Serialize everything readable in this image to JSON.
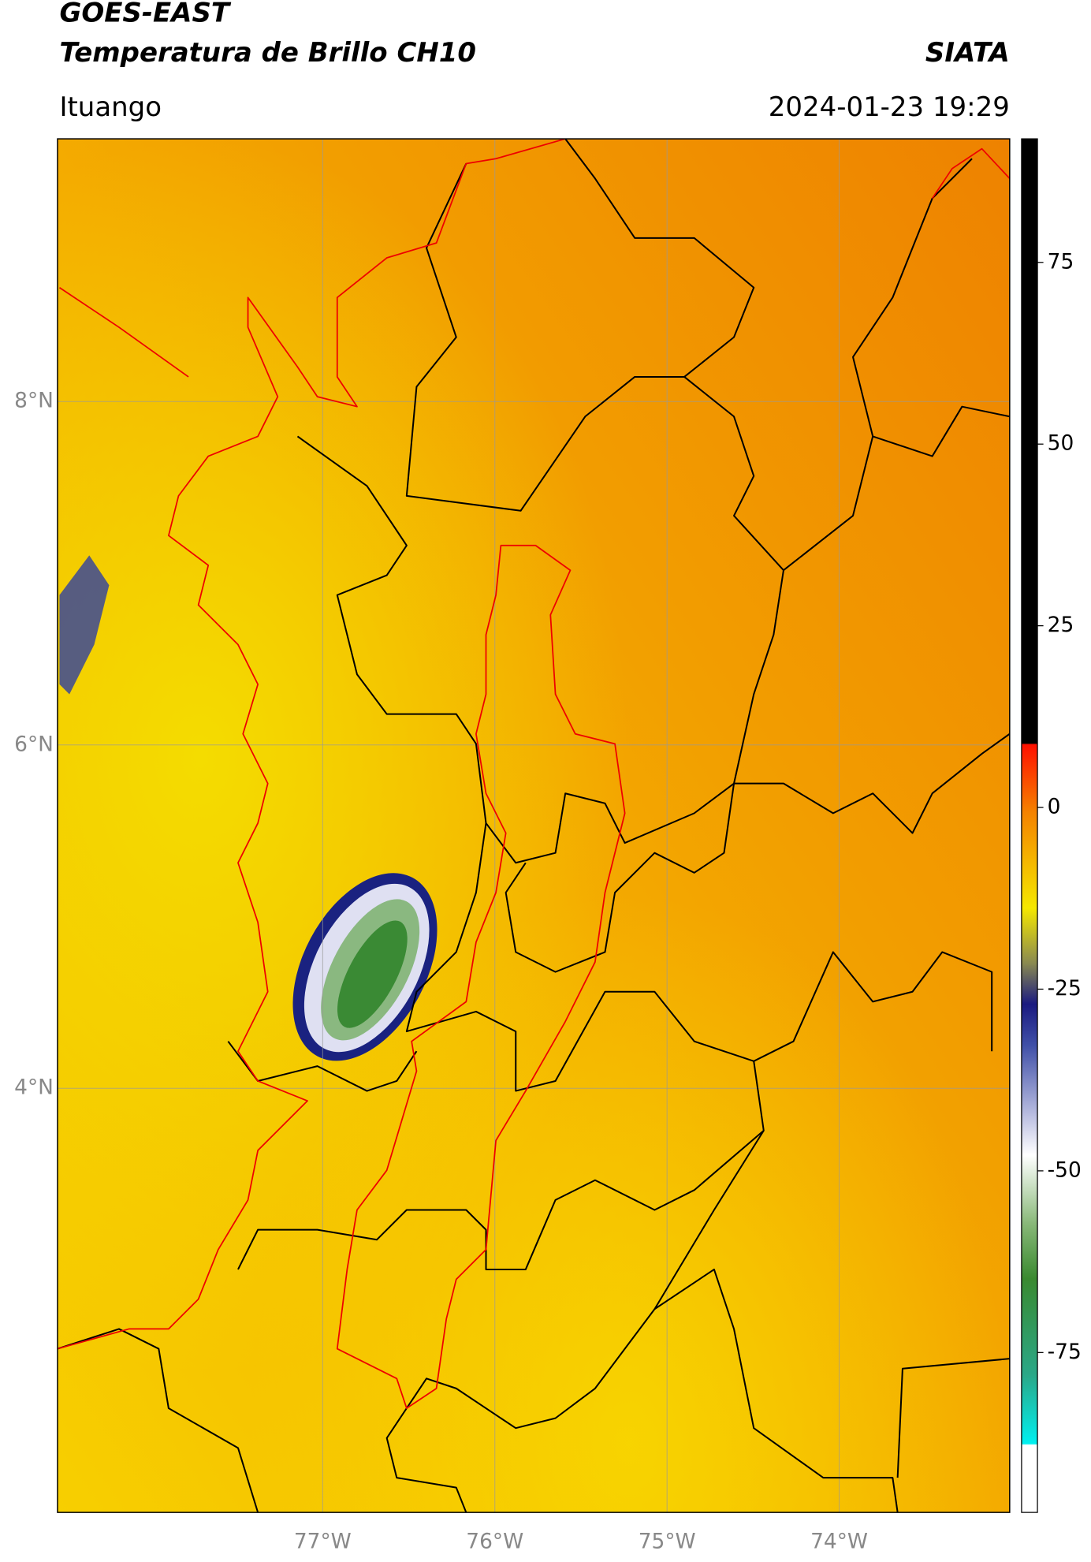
{
  "header": {
    "title_line1": "GOES-EAST",
    "title_line2": "Temperatura de Brillo CH10",
    "organization": "SIATA",
    "location": "Ituango",
    "timestamp": "2024-01-23 19:29"
  },
  "map": {
    "xlim": [
      -78.54,
      -73.01
    ],
    "ylim": [
      1.53,
      9.53
    ],
    "grid": true,
    "xticks": [
      {
        "value": -77,
        "label": "77°W"
      },
      {
        "value": -76,
        "label": "76°W"
      },
      {
        "value": -75,
        "label": "75°W"
      },
      {
        "value": -74,
        "label": "74°W"
      }
    ],
    "yticks": [
      {
        "value": 8,
        "label": "8°N"
      },
      {
        "value": 6,
        "label": "6°N"
      },
      {
        "value": 4,
        "label": "4°N"
      }
    ]
  },
  "colorbar": {
    "clim": [
      -97,
      92
    ],
    "ticks": [
      75,
      50,
      25,
      0,
      -25,
      -50,
      -75
    ]
  }
}
